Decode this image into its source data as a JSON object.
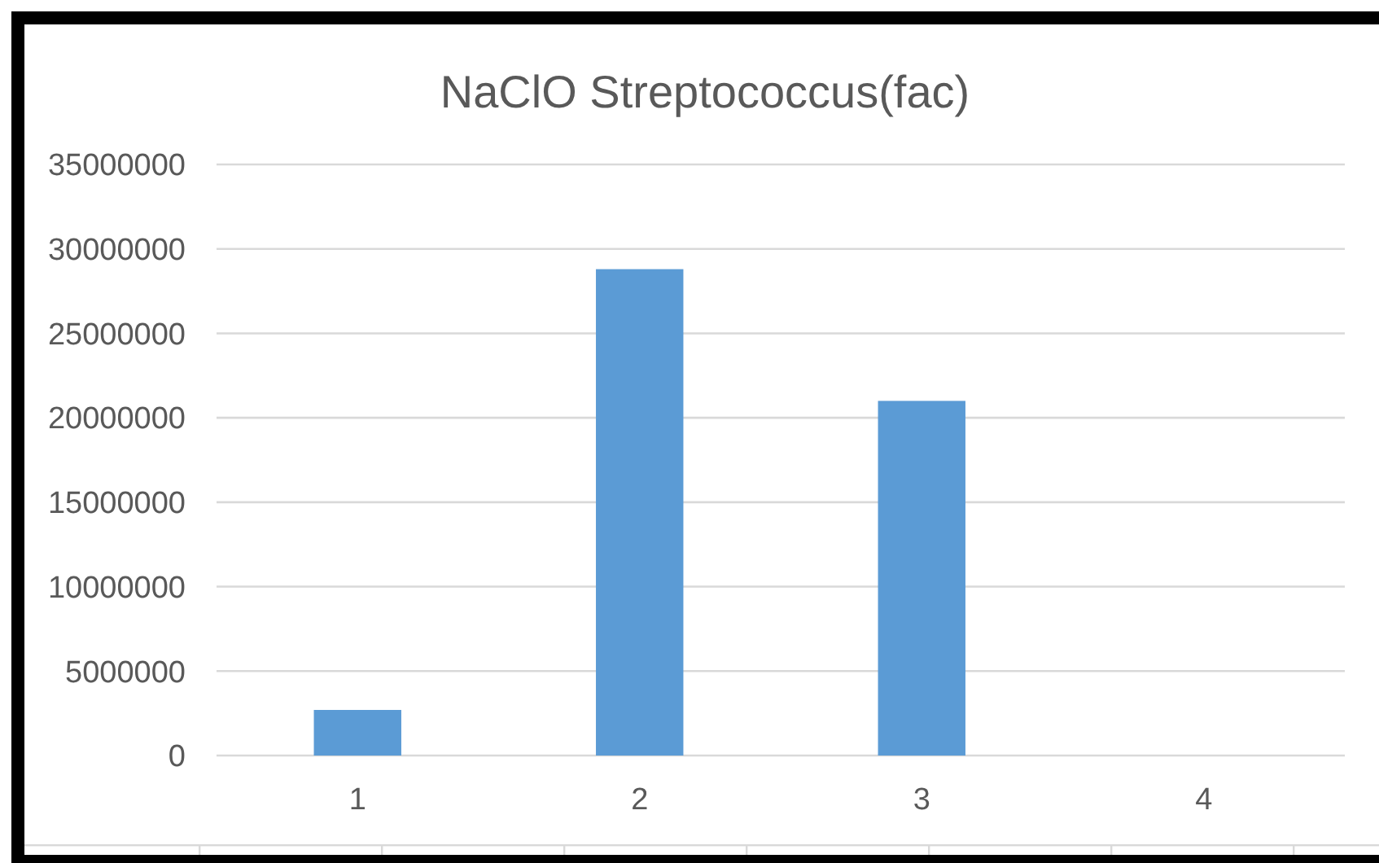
{
  "chart_data": {
    "type": "bar",
    "title": "NaClO Streptococcus(fac)",
    "categories": [
      "1",
      "2",
      "3",
      "4"
    ],
    "values": [
      2700000,
      28800000,
      21000000,
      null
    ],
    "color": "#5b9bd5",
    "ylim": [
      0,
      35000000
    ],
    "yticks": [
      0,
      5000000,
      10000000,
      15000000,
      20000000,
      25000000,
      30000000,
      35000000
    ],
    "grid": "y"
  }
}
